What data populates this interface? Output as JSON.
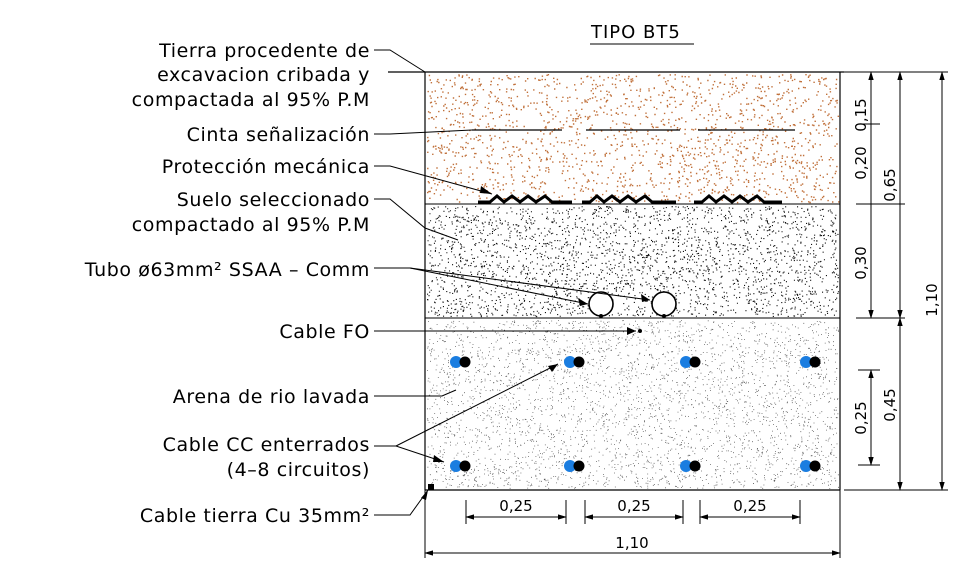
{
  "title": "TIPO BT5",
  "labels": {
    "tierra_1": "Tierra procedente de",
    "tierra_2": "excavacion cribada y",
    "tierra_3": "compactada al 95% P.M",
    "cinta": "Cinta señalización",
    "proteccion": "Protección mecánica",
    "suelo_1": "Suelo seleccionado",
    "suelo_2": "compactado al 95% P.M",
    "tubo": "Tubo ø63mm² SSAA – Comm",
    "fo": "Cable FO",
    "arena": "Arena de rio lavada",
    "cc_1": "Cable CC enterrados",
    "cc_2": "(4–8 circuitos)",
    "tierra_cu": "Cable tierra Cu 35mm²"
  },
  "dimensions": {
    "d_015": "0,15",
    "d_020": "0,20",
    "d_065": "0,65",
    "d_030": "0,30",
    "d_110_v": "1,10",
    "d_045": "0,45",
    "d_025_v": "0,25",
    "d_025_a": "0,25",
    "d_025_b": "0,25",
    "d_025_c": "0,25",
    "d_110_h": "1,10"
  },
  "colors": {
    "topsoil_dots": "#c0703a",
    "cable_blue": "#1a7de0",
    "cable_black": "#000000"
  }
}
